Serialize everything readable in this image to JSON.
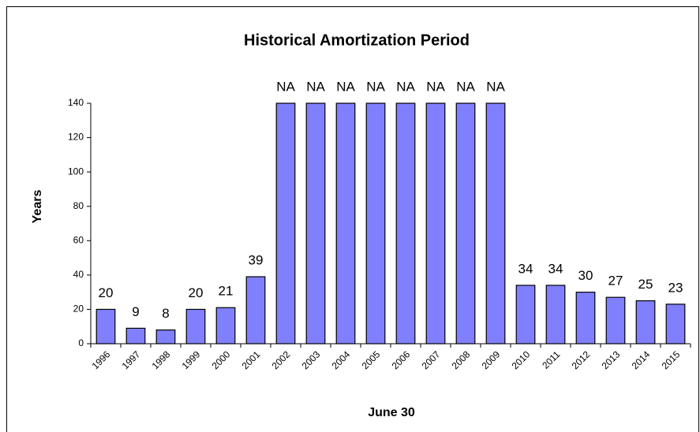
{
  "chart_data": {
    "type": "bar",
    "title": "Historical Amortization Period",
    "xlabel": "June 30",
    "ylabel": "Years",
    "categories": [
      "1996",
      "1997",
      "1998",
      "1999",
      "2000",
      "2001",
      "2002",
      "2003",
      "2004",
      "2005",
      "2006",
      "2007",
      "2008",
      "2009",
      "2010",
      "2011",
      "2012",
      "2013",
      "2014",
      "2015"
    ],
    "values": [
      20,
      9,
      8,
      20,
      21,
      39,
      140,
      140,
      140,
      140,
      140,
      140,
      140,
      140,
      34,
      34,
      30,
      27,
      25,
      23
    ],
    "value_labels": [
      "20",
      "9",
      "8",
      "20",
      "21",
      "39",
      "NA",
      "NA",
      "NA",
      "NA",
      "NA",
      "NA",
      "NA",
      "NA",
      "34",
      "34",
      "30",
      "27",
      "25",
      "23"
    ],
    "color": "#8080ff",
    "ylim": [
      0,
      140
    ],
    "yticks": [
      0,
      20,
      40,
      60,
      80,
      100,
      120,
      140
    ],
    "grid": false
  }
}
